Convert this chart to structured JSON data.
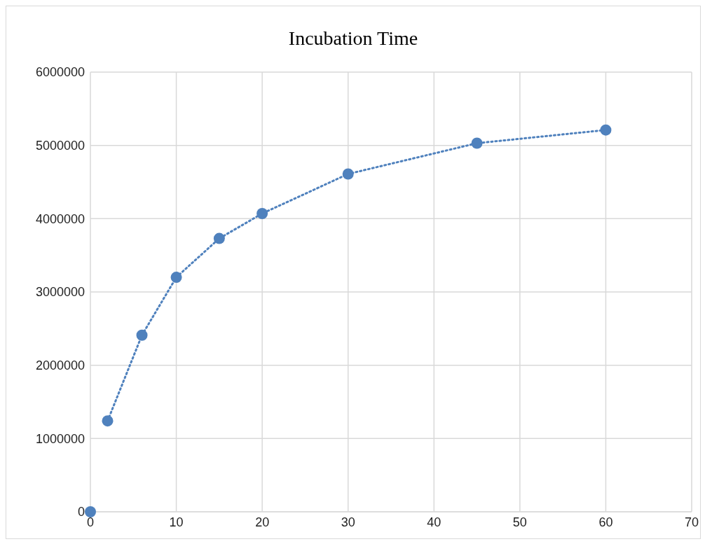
{
  "chart_data": {
    "type": "scatter",
    "title": "Incubation Time",
    "x": [
      0,
      2,
      6,
      10,
      15,
      20,
      30,
      45,
      60
    ],
    "series": [
      {
        "color": "#4f81bd",
        "values": [
          0,
          1240000,
          2410000,
          3200000,
          3730000,
          4070000,
          4610000,
          5030000,
          5210000
        ],
        "marker": "circle"
      },
      {
        "type": "line",
        "color": "#4f81bd",
        "x": [
          2,
          6,
          10,
          15,
          20,
          30,
          45,
          60
        ],
        "values": [
          1240000,
          2410000,
          3200000,
          3730000,
          4070000,
          4610000,
          5030000,
          5210000
        ],
        "marker": "none",
        "line_style": "dotted"
      }
    ],
    "xlim": [
      0,
      70
    ],
    "xticks": [
      0,
      10,
      20,
      30,
      40,
      50,
      60,
      70
    ],
    "ylim": [
      0,
      6000000
    ],
    "yticks": [
      0,
      1000000,
      2000000,
      3000000,
      4000000,
      5000000,
      6000000
    ],
    "grid": true,
    "legend": false
  }
}
